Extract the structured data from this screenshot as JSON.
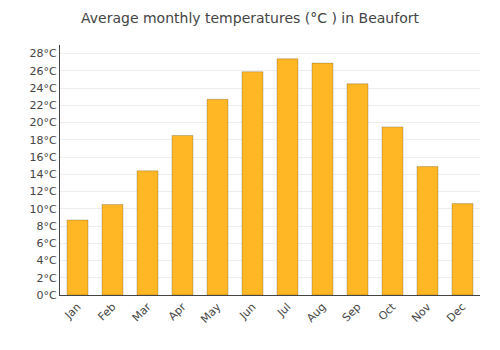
{
  "chart_data": {
    "type": "bar",
    "title": "Average monthly temperatures (°C ) in Beaufort",
    "categories": [
      "Jan",
      "Feb",
      "Mar",
      "Apr",
      "May",
      "Jun",
      "Jul",
      "Aug",
      "Sep",
      "Oct",
      "Nov",
      "Dec"
    ],
    "values": [
      8.7,
      10.5,
      14.4,
      18.5,
      22.7,
      25.9,
      27.4,
      26.9,
      24.5,
      19.5,
      14.9,
      10.6
    ],
    "color": "#FFB726",
    "ylim": [
      0,
      29
    ],
    "yticks": [
      {
        "value": 0,
        "label": "0°C"
      },
      {
        "value": 2,
        "label": "2°C"
      },
      {
        "value": 4,
        "label": "4°C"
      },
      {
        "value": 6,
        "label": "6°C"
      },
      {
        "value": 8,
        "label": "8°C"
      },
      {
        "value": 10,
        "label": "10°C"
      },
      {
        "value": 12,
        "label": "12°C"
      },
      {
        "value": 14,
        "label": "14°C"
      },
      {
        "value": 16,
        "label": "16°C"
      },
      {
        "value": 18,
        "label": "18°C"
      },
      {
        "value": 20,
        "label": "20°C"
      },
      {
        "value": 22,
        "label": "22°C"
      },
      {
        "value": 24,
        "label": "24°C"
      },
      {
        "value": 26,
        "label": "26°C"
      },
      {
        "value": 28,
        "label": "28°C"
      }
    ],
    "grid": true
  }
}
